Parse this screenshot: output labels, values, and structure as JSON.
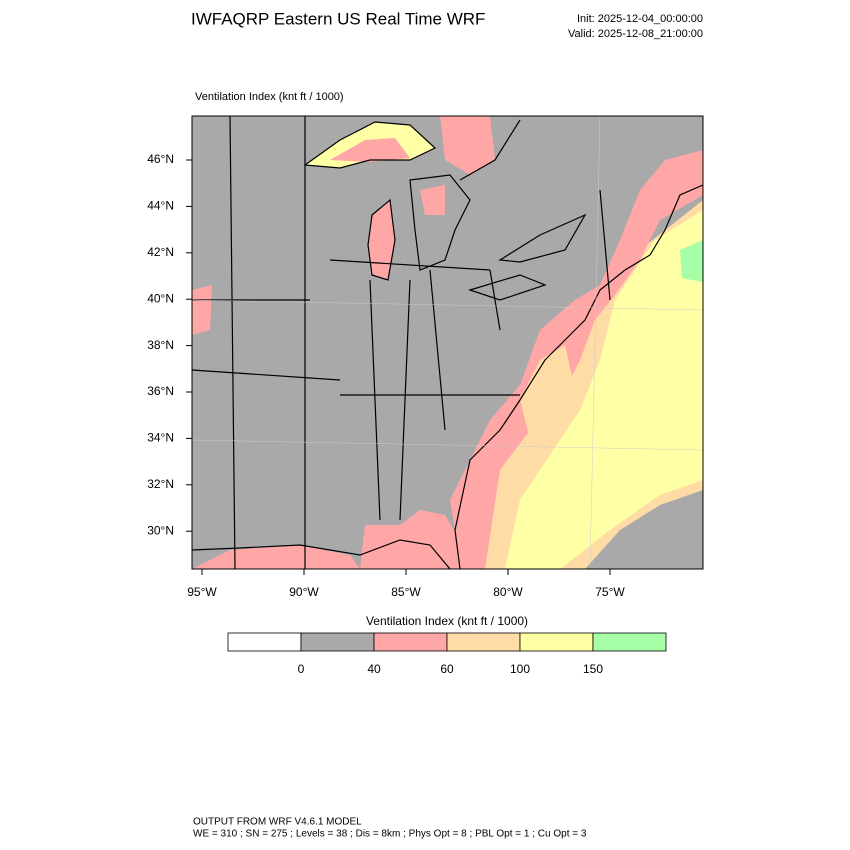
{
  "header": {
    "title": "IWFAQRP Eastern US Real Time WRF",
    "init": "Init: 2025-12-04_00:00:00",
    "valid": "Valid: 2025-12-08_21:00:00"
  },
  "map": {
    "subtitle": "Ventilation Index   (knt ft / 1000)",
    "lat_labels": [
      "46°N",
      "44°N",
      "42°N",
      "40°N",
      "38°N",
      "36°N",
      "34°N",
      "32°N",
      "30°N"
    ],
    "lon_labels": [
      "95°W",
      "90°W",
      "85°W",
      "80°W",
      "75°W"
    ]
  },
  "colorbar": {
    "title": "Ventilation Index  (knt ft / 1000)",
    "labels": [
      "0",
      "40",
      "60",
      "100",
      "150"
    ],
    "colors": [
      "#ffffff",
      "#a9a9a9",
      "#ffa6a6",
      "#ffdca6",
      "#ffffa6",
      "#a6ffa6"
    ]
  },
  "footer": {
    "line1": "OUTPUT FROM WRF V4.6.1 MODEL",
    "line2": "WE = 310 ; SN = 275 ; Levels = 38 ; Dis = 8km ; Phys Opt = 8 ; PBL Opt = 1 ; Cu Opt = 3"
  }
}
